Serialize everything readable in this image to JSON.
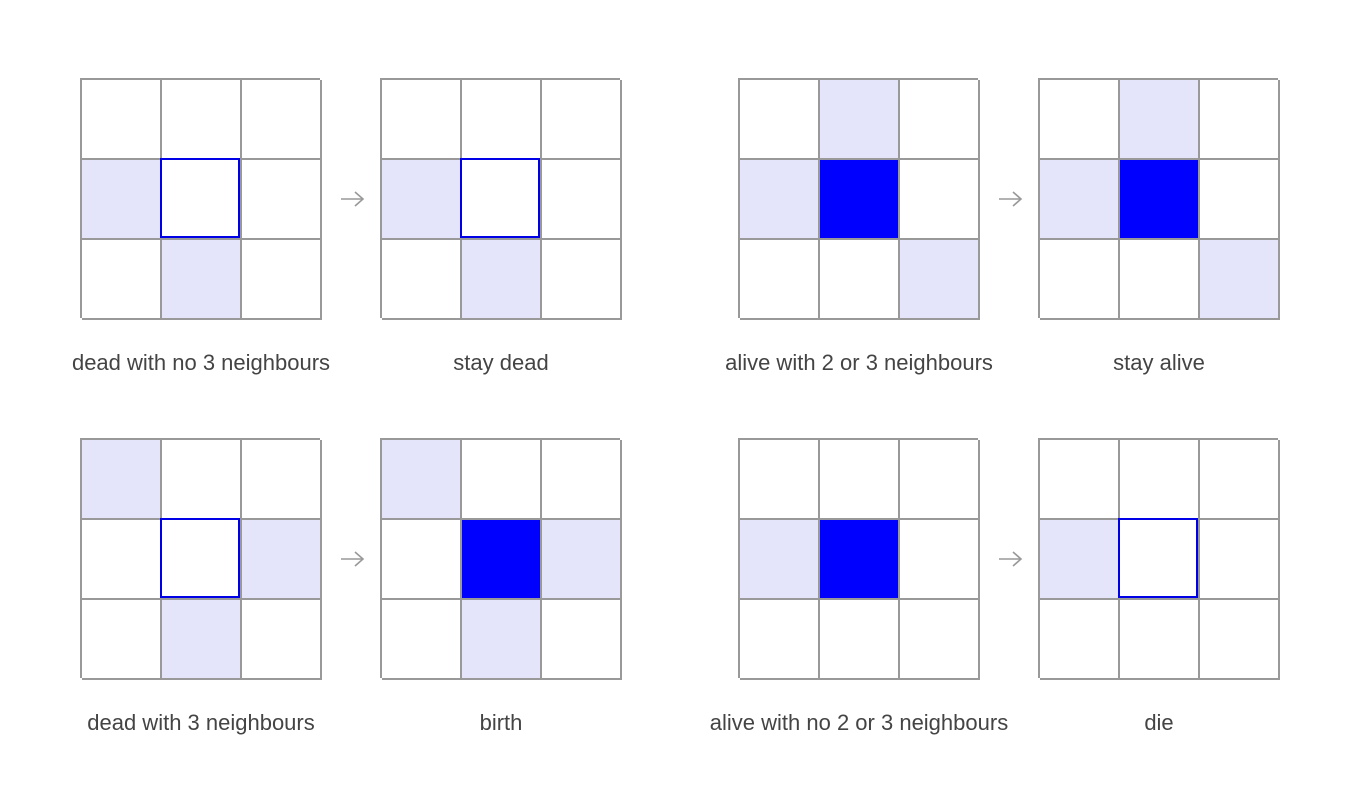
{
  "colors": {
    "grid_line": "#999999",
    "neighbour": "#e4e4fb",
    "alive": "#0000ff",
    "dead_focus_border": "#0000e6",
    "arrow": "#999999",
    "label": "#444444"
  },
  "arrow_icon": "right-arrow-icon",
  "rules": [
    {
      "before": {
        "label": "dead with no 3 neighbours",
        "cells": [
          "e",
          "e",
          "e",
          "n",
          "d",
          "e",
          "e",
          "n",
          "e"
        ]
      },
      "after": {
        "label": "stay dead",
        "cells": [
          "e",
          "e",
          "e",
          "n",
          "d",
          "e",
          "e",
          "n",
          "e"
        ]
      }
    },
    {
      "before": {
        "label": "alive with 2 or 3 neighbours",
        "cells": [
          "e",
          "n",
          "e",
          "n",
          "a",
          "e",
          "e",
          "e",
          "n"
        ]
      },
      "after": {
        "label": "stay alive",
        "cells": [
          "e",
          "n",
          "e",
          "n",
          "a",
          "e",
          "e",
          "e",
          "n"
        ]
      }
    },
    {
      "before": {
        "label": "dead with 3 neighbours",
        "cells": [
          "n",
          "e",
          "e",
          "e",
          "d",
          "n",
          "e",
          "n",
          "e"
        ]
      },
      "after": {
        "label": "birth",
        "cells": [
          "n",
          "e",
          "e",
          "e",
          "a",
          "n",
          "e",
          "n",
          "e"
        ]
      }
    },
    {
      "before": {
        "label": "alive with no 2 or 3 neighbours",
        "cells": [
          "e",
          "e",
          "e",
          "n",
          "a",
          "e",
          "e",
          "e",
          "e"
        ]
      },
      "after": {
        "label": "die",
        "cells": [
          "e",
          "e",
          "e",
          "n",
          "d",
          "e",
          "e",
          "e",
          "e"
        ]
      }
    }
  ]
}
